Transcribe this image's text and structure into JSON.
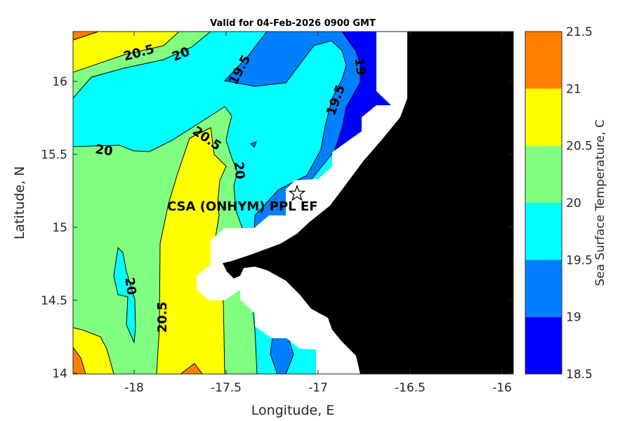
{
  "chart_data": {
    "type": "contour-map",
    "title": "Valid for 04-Feb-2026 0900 GMT",
    "xlabel": "Longitude, E",
    "ylabel": "Latitude, N",
    "xlim": [
      -18.33,
      -15.95
    ],
    "ylim": [
      14.0,
      16.33
    ],
    "xticks": [
      "-18",
      "-17.5",
      "-17",
      "-16.5",
      "-16"
    ],
    "yticks": [
      "16",
      "15.5",
      "15",
      "14.5",
      "14"
    ],
    "colorbar": {
      "label": "Sea Surface Temperature, C",
      "ticks": [
        "21.5",
        "21",
        "20.5",
        "20",
        "19.5",
        "19",
        "18.5"
      ],
      "levels": [
        18.5,
        19,
        19.5,
        20,
        20.5,
        21,
        21.5
      ],
      "colors": [
        "#0000FF",
        "#0080FF",
        "#00FFFF",
        "#80FF80",
        "#FFFF00",
        "#FF8000"
      ]
    },
    "contour_labels": [
      "20.5",
      "20",
      "19.5",
      "19",
      "19.5",
      "20",
      "20.5",
      "20",
      "20",
      "20.5"
    ],
    "annotation": "CSA (ONHYM) PPL EF",
    "marker": "star",
    "land_color": "#000000",
    "mask_color": "#FFFFFF"
  }
}
